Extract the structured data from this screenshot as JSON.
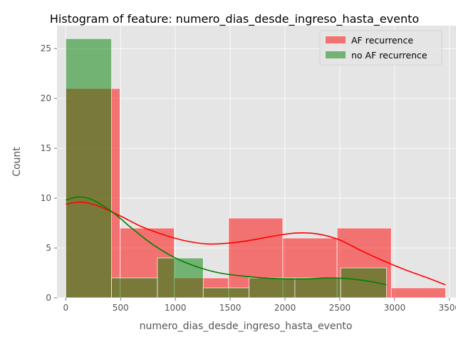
{
  "chart_data": {
    "type": "bar",
    "title": "Histogram of feature: numero_dias_desde_ingreso_hasta_evento",
    "xlabel": "numero_dias_desde_ingreso_hasta_evento",
    "ylabel": "Count",
    "xlim": [
      -80,
      3560
    ],
    "ylim": [
      0,
      27.3
    ],
    "xticks": [
      0,
      500,
      1000,
      1500,
      2000,
      2500,
      3000,
      3500
    ],
    "yticks": [
      0,
      5,
      10,
      15,
      20,
      25
    ],
    "grid": true,
    "legend_position": "top-right",
    "series": [
      {
        "name": "AF recurrence",
        "color": "#ff0000",
        "bins": [
          {
            "x0": 0,
            "x1": 495,
            "count": 21
          },
          {
            "x0": 495,
            "x1": 990,
            "count": 7
          },
          {
            "x0": 990,
            "x1": 1485,
            "count": 2
          },
          {
            "x0": 1485,
            "x1": 1980,
            "count": 8
          },
          {
            "x0": 1980,
            "x1": 2475,
            "count": 6
          },
          {
            "x0": 2475,
            "x1": 2970,
            "count": 7
          },
          {
            "x0": 2970,
            "x1": 3465,
            "count": 1
          }
        ],
        "kde": [
          [
            0,
            9.4
          ],
          [
            150,
            9.6
          ],
          [
            300,
            9.2
          ],
          [
            500,
            8.2
          ],
          [
            700,
            7.1
          ],
          [
            900,
            6.3
          ],
          [
            1100,
            5.7
          ],
          [
            1300,
            5.4
          ],
          [
            1500,
            5.5
          ],
          [
            1700,
            5.8
          ],
          [
            1900,
            6.2
          ],
          [
            2100,
            6.5
          ],
          [
            2300,
            6.4
          ],
          [
            2500,
            5.8
          ],
          [
            2700,
            4.7
          ],
          [
            2900,
            3.7
          ],
          [
            3100,
            2.8
          ],
          [
            3300,
            2.0
          ],
          [
            3465,
            1.3
          ]
        ]
      },
      {
        "name": "no AF recurrence",
        "color": "#008000",
        "bins": [
          {
            "x0": 0,
            "x1": 418,
            "count": 26
          },
          {
            "x0": 418,
            "x1": 836,
            "count": 2
          },
          {
            "x0": 836,
            "x1": 1254,
            "count": 4
          },
          {
            "x0": 1254,
            "x1": 1672,
            "count": 1
          },
          {
            "x0": 1672,
            "x1": 2090,
            "count": 2
          },
          {
            "x0": 2090,
            "x1": 2508,
            "count": 2
          },
          {
            "x0": 2508,
            "x1": 2926,
            "count": 3
          }
        ],
        "kde": [
          [
            0,
            9.8
          ],
          [
            100,
            10.1
          ],
          [
            200,
            10.0
          ],
          [
            300,
            9.5
          ],
          [
            450,
            8.4
          ],
          [
            600,
            7.0
          ],
          [
            800,
            5.3
          ],
          [
            1000,
            4.0
          ],
          [
            1200,
            3.1
          ],
          [
            1400,
            2.5
          ],
          [
            1600,
            2.2
          ],
          [
            1800,
            2.0
          ],
          [
            2000,
            1.9
          ],
          [
            2200,
            1.9
          ],
          [
            2400,
            2.0
          ],
          [
            2600,
            1.9
          ],
          [
            2800,
            1.6
          ],
          [
            2926,
            1.3
          ]
        ]
      }
    ]
  }
}
